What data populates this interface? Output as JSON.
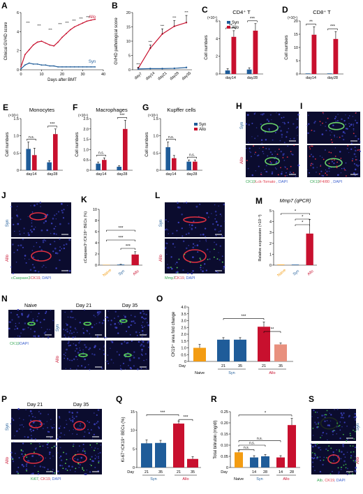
{
  "colors": {
    "syn": "#1f5c99",
    "allo": "#c8102e",
    "naive": "#f39c12",
    "allo_light": "#e8907e",
    "dark": "#000000",
    "gray": "#888888"
  },
  "legend": {
    "syn": "Syn",
    "allo": "Allo"
  },
  "panels": {
    "A": {
      "letter": "A",
      "ylabel": "Clinical GVHD score",
      "xlabel": "Days after BMT",
      "label_allo": "Allo",
      "label_syn": "Syn",
      "yticks": [
        "0",
        "2",
        "4",
        "6"
      ],
      "xticks": [
        "0",
        "10",
        "20",
        "30",
        "40"
      ],
      "stars": "***"
    },
    "B": {
      "letter": "B",
      "ylabel": "GVHD pathological score",
      "xticks": [
        "day7",
        "day14",
        "day21",
        "day28",
        "day35"
      ],
      "yticks": [
        "0",
        "5",
        "10",
        "15",
        "20"
      ],
      "stars": "***"
    },
    "C": {
      "letter": "C",
      "title": "CD4⁺ T",
      "mult": "(×10⁴)",
      "ylabel": "Cell numbers",
      "xticks": [
        "day14",
        "day28"
      ],
      "yticks": [
        "0",
        "2",
        "4",
        "6"
      ],
      "sig": [
        "**",
        "***"
      ]
    },
    "D": {
      "letter": "D",
      "title": "CD8⁺ T",
      "mult": "(×10⁴)",
      "ylabel": "Cell numbers",
      "xticks": [
        "day14",
        "day28"
      ],
      "yticks": [
        "0",
        "5",
        "10",
        "15",
        "20"
      ],
      "sig": [
        "**",
        "***"
      ]
    },
    "E": {
      "letter": "E",
      "title": "Monocytes",
      "mult": "(×10⁴)",
      "ylabel": "Cell numbers",
      "xticks": [
        "day14",
        "day28"
      ],
      "yticks": [
        "0",
        "0.5",
        "1.0",
        "1.5"
      ],
      "sig": [
        "n.s.",
        "***"
      ]
    },
    "F": {
      "letter": "F",
      "title": "Macrophages",
      "mult": "(×10⁴)",
      "ylabel": "Cell numbers",
      "xticks": [
        "day14",
        "day28"
      ],
      "yticks": [
        "0",
        "0.5",
        "1.0",
        "1.5",
        "2.0",
        "2.5"
      ],
      "sig": [
        "n.s.",
        "***"
      ]
    },
    "G": {
      "letter": "G",
      "title": "Kupffer cells",
      "mult": "(×10⁴)",
      "ylabel": "Cell numbers",
      "xticks": [
        "day14",
        "day28"
      ],
      "yticks": [
        "0",
        "0.5",
        "1.0",
        "1.5"
      ],
      "sig": [
        "n.s.",
        "n.s."
      ]
    },
    "H": {
      "letter": "H",
      "top": "Syn",
      "bottom": "Allo",
      "caption": [
        "CK19",
        ", Lck-Tomato",
        ", DAPI"
      ]
    },
    "I": {
      "letter": "I",
      "top": "Syn",
      "bottom": "Allo",
      "caption": [
        "CK19",
        ", F4/80",
        ", DAPI"
      ]
    },
    "J": {
      "letter": "J",
      "top": "Syn",
      "bottom": "Allo",
      "caption": [
        "cCaspase3",
        ", CK19",
        ", DAPI"
      ]
    },
    "K": {
      "letter": "K",
      "ylabel": "cCaspase3⁺/CK19⁺ BECs (%)",
      "xticks": [
        "Naive",
        "Syn",
        "Allo"
      ],
      "yticks": [
        "0",
        "2",
        "4",
        "6",
        "8",
        "10"
      ],
      "sig": [
        "***",
        "***",
        "***"
      ]
    },
    "L": {
      "letter": "L",
      "top": "Syn",
      "bottom": "Allo",
      "caption": [
        "Mmp7",
        ", CK19",
        ", DAPI"
      ]
    },
    "M": {
      "letter": "M",
      "title": "Mmp7 (qPCR)",
      "ylabel": "Relative expression (×10⁻³)",
      "xticks": [
        "Naive",
        "Syn",
        "Allo"
      ],
      "yticks": [
        "0",
        "1",
        "2",
        "3",
        "4",
        "5"
      ],
      "sig": [
        "*",
        "*",
        "*"
      ]
    },
    "N": {
      "letter": "N",
      "cols": [
        "Naive",
        "Day 21",
        "Day 35"
      ],
      "rows": [
        "Syn",
        "Allo"
      ],
      "caption": [
        "CK19",
        ", DAPI"
      ]
    },
    "O": {
      "letter": "O",
      "ylabel": "CK19⁺ area fold change",
      "yticks": [
        "0",
        "0.5",
        "1.0",
        "1.5",
        "2.0",
        "2.5",
        "3.0",
        "3.5",
        "4.0"
      ],
      "day_label": "Day",
      "xticks": [
        "21",
        "35",
        "21",
        "35"
      ],
      "groups": [
        "Naive",
        "Syn",
        "Allo"
      ],
      "sig": [
        "***",
        "**"
      ]
    },
    "P": {
      "letter": "P",
      "cols": [
        "Day 21",
        "Day 35"
      ],
      "rows": [
        "Syn",
        "Allo"
      ],
      "caption": [
        "Ki67",
        ", CK19",
        ", DAPI"
      ]
    },
    "Q": {
      "letter": "Q",
      "ylabel": "Ki-67⁺/CK19⁺ BECs (%)",
      "yticks": [
        "0",
        "5",
        "10",
        "15"
      ],
      "day_label": "Day",
      "xticks": [
        "21",
        "35",
        "21",
        "35"
      ],
      "groups": [
        "Syn",
        "Allo"
      ],
      "sig": [
        "***",
        "***"
      ]
    },
    "R": {
      "letter": "R",
      "ylabel": "Total bilirubin (mg/dl)",
      "yticks": [
        "0",
        "0.05",
        "0.10",
        "0.15",
        "0.20",
        "0.25"
      ],
      "day_label": "Day",
      "xticks": [
        "14",
        "28",
        "14",
        "28"
      ],
      "groups": [
        "Naive",
        "Syn",
        "Allo"
      ],
      "sig": [
        "*",
        "n.s.",
        "n.s.",
        "n.s."
      ]
    },
    "S": {
      "letter": "S",
      "top": "Syn",
      "bottom": "Allo",
      "caption": [
        "Alb",
        ", CK19",
        ", DAPI"
      ]
    }
  },
  "chart_data": [
    {
      "panel": "A",
      "type": "line",
      "series": [
        {
          "name": "Allo",
          "x": [
            0,
            2,
            4,
            6,
            8,
            10,
            12,
            14,
            16,
            18,
            20,
            22,
            24,
            26,
            28,
            30,
            32,
            34,
            36
          ],
          "values": [
            0.3,
            1.6,
            2.1,
            2.6,
            2.9,
            3.0,
            2.8,
            2.6,
            2.5,
            2.9,
            3.4,
            3.8,
            4.2,
            4.5,
            4.7,
            4.9,
            5.1,
            5.2,
            5.3
          ]
        },
        {
          "name": "Syn",
          "x": [
            0,
            2,
            4,
            6,
            8,
            10,
            12,
            14,
            16,
            18,
            20,
            22,
            24,
            26,
            28,
            30,
            32,
            34,
            36
          ],
          "values": [
            0.1,
            0.5,
            0.7,
            0.6,
            0.6,
            0.5,
            0.5,
            0.4,
            0.4,
            0.3,
            0.3,
            0.3,
            0.3,
            0.3,
            0.3,
            0.3,
            0.3,
            0.3,
            0.3
          ]
        }
      ],
      "xlim": [
        0,
        40
      ],
      "ylim": [
        0,
        6
      ]
    },
    {
      "panel": "B",
      "type": "line",
      "categories": [
        "day7",
        "day14",
        "day21",
        "day28",
        "day35"
      ],
      "series": [
        {
          "name": "Allo",
          "values": [
            0.5,
            7.5,
            12.5,
            15.2,
            16.5
          ],
          "err": [
            0.4,
            1.2,
            1.8,
            2.0,
            2.5
          ]
        },
        {
          "name": "Syn",
          "values": [
            0.3,
            0.4,
            0.4,
            0.5,
            0.8
          ]
        }
      ],
      "ylim": [
        0,
        20
      ]
    },
    {
      "panel": "C",
      "type": "bar",
      "categories": [
        "day14",
        "day28"
      ],
      "series": [
        {
          "name": "Syn",
          "values": [
            0.4,
            0.5
          ],
          "err": [
            0.2,
            0.2
          ]
        },
        {
          "name": "Allo",
          "values": [
            4.2,
            4.9
          ],
          "err": [
            0.7,
            0.8
          ]
        }
      ],
      "ylim": [
        0,
        6
      ]
    },
    {
      "panel": "D",
      "type": "bar",
      "categories": [
        "day14",
        "day28"
      ],
      "series": [
        {
          "name": "Syn",
          "values": [
            0.2,
            0.2
          ]
        },
        {
          "name": "Allo",
          "values": [
            14.8,
            13.2
          ],
          "err": [
            3.0,
            2.8
          ]
        }
      ],
      "ylim": [
        0,
        20
      ]
    },
    {
      "panel": "E",
      "type": "bar",
      "categories": [
        "day14",
        "day28"
      ],
      "series": [
        {
          "name": "Syn",
          "values": [
            0.62,
            0.23
          ],
          "err": [
            0.2,
            0.05
          ]
        },
        {
          "name": "Allo",
          "values": [
            0.44,
            1.05
          ],
          "err": [
            0.2,
            0.15
          ]
        }
      ],
      "ylim": [
        0,
        1.5
      ]
    },
    {
      "panel": "F",
      "type": "bar",
      "categories": [
        "day14",
        "day28"
      ],
      "series": [
        {
          "name": "Syn",
          "values": [
            0.32,
            0.17
          ],
          "err": [
            0.08,
            0.05
          ]
        },
        {
          "name": "Allo",
          "values": [
            0.5,
            2.0
          ],
          "err": [
            0.1,
            0.42
          ]
        }
      ],
      "ylim": [
        0,
        2.5
      ]
    },
    {
      "panel": "G",
      "type": "bar",
      "categories": [
        "day14",
        "day28"
      ],
      "series": [
        {
          "name": "Syn",
          "values": [
            0.67,
            0.25
          ],
          "err": [
            0.15,
            0.05
          ]
        },
        {
          "name": "Allo",
          "values": [
            0.35,
            0.25
          ],
          "err": [
            0.08,
            0.05
          ]
        }
      ],
      "ylim": [
        0,
        1.5
      ]
    },
    {
      "panel": "K",
      "type": "bar",
      "categories": [
        "Naive",
        "Syn",
        "Allo"
      ],
      "values": [
        0.05,
        0.1,
        1.9
      ],
      "err": [
        0,
        0.05,
        0.5
      ],
      "ylim": [
        0,
        10
      ]
    },
    {
      "panel": "M",
      "type": "bar",
      "categories": [
        "Naive",
        "Syn",
        "Allo"
      ],
      "values": [
        0.05,
        0.05,
        2.9
      ],
      "err": [
        0,
        0,
        1.3
      ],
      "ylim": [
        0,
        5
      ]
    },
    {
      "panel": "O",
      "type": "bar",
      "categories": [
        "Naive",
        "Syn 21",
        "Syn 35",
        "Allo 21",
        "Allo 35"
      ],
      "values": [
        1.0,
        1.6,
        1.6,
        2.55,
        1.25
      ],
      "err": [
        0.25,
        0.15,
        0.15,
        0.35,
        0.1
      ],
      "ylim": [
        0,
        4
      ]
    },
    {
      "panel": "Q",
      "type": "bar",
      "categories": [
        "Syn 21",
        "Syn 35",
        "Allo 21",
        "Allo 35"
      ],
      "values": [
        6.5,
        6.6,
        11.8,
        2.3
      ],
      "err": [
        0.9,
        0.7,
        0.7,
        0.6
      ],
      "ylim": [
        0,
        15
      ]
    },
    {
      "panel": "R",
      "type": "bar",
      "categories": [
        "Naive",
        "Syn 14",
        "Syn 28",
        "Allo 14",
        "Allo 28"
      ],
      "values": [
        0.068,
        0.045,
        0.05,
        0.045,
        0.19
      ],
      "err": [
        0.01,
        0.008,
        0.008,
        0.008,
        0.03
      ],
      "ylim": [
        0,
        0.25
      ]
    }
  ]
}
